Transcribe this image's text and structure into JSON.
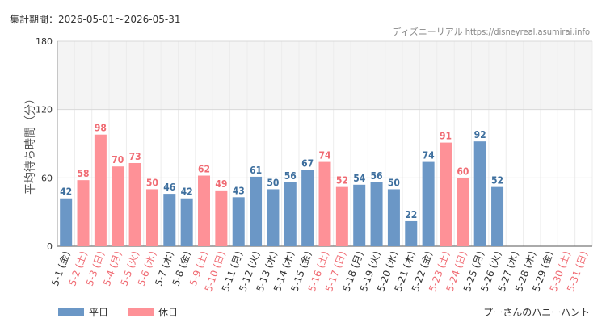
{
  "period_label": "集計期間：2026-05-01～2026-05-31",
  "source": "ディズニーリアル https://disneyreal.asumirai.info",
  "attraction": "プーさんのハニーハント",
  "colors": {
    "weekday": "#6b97c6",
    "holiday": "#fe9197",
    "holiday_text": "#f06b73",
    "weekday_text": "#3e6f9e",
    "axis_text": "#333333"
  },
  "chart_data": {
    "type": "bar",
    "ylabel": "平均待ち時間（分）",
    "ylim": [
      0,
      180
    ],
    "yticks": [
      0,
      60,
      120,
      180
    ],
    "shaded_band": [
      120,
      180
    ],
    "legend": {
      "position": "bottom-left",
      "entries": [
        {
          "key": "weekday",
          "label": "平日"
        },
        {
          "key": "holiday",
          "label": "休日"
        }
      ]
    },
    "categories": [
      "5-1 (金)",
      "5-2 (土)",
      "5-3 (日)",
      "5-4 (月)",
      "5-5 (火)",
      "5-6 (水)",
      "5-7 (木)",
      "5-8 (金)",
      "5-9 (土)",
      "5-10 (日)",
      "5-11 (月)",
      "5-12 (火)",
      "5-13 (水)",
      "5-14 (木)",
      "5-15 (金)",
      "5-16 (土)",
      "5-17 (日)",
      "5-18 (月)",
      "5-19 (火)",
      "5-20 (水)",
      "5-21 (木)",
      "5-22 (金)",
      "5-23 (土)",
      "5-24 (日)",
      "5-25 (月)",
      "5-26 (火)",
      "5-27 (水)",
      "5-28 (木)",
      "5-29 (金)",
      "5-30 (土)",
      "5-31 (日)"
    ],
    "values": [
      42,
      58,
      98,
      70,
      73,
      50,
      46,
      42,
      62,
      49,
      43,
      61,
      50,
      56,
      67,
      74,
      52,
      54,
      56,
      50,
      22,
      74,
      91,
      60,
      92,
      52,
      null,
      null,
      null,
      null,
      null
    ],
    "day_type": [
      "weekday",
      "holiday",
      "holiday",
      "holiday",
      "holiday",
      "holiday",
      "weekday",
      "weekday",
      "holiday",
      "holiday",
      "weekday",
      "weekday",
      "weekday",
      "weekday",
      "weekday",
      "holiday",
      "holiday",
      "weekday",
      "weekday",
      "weekday",
      "weekday",
      "weekday",
      "holiday",
      "holiday",
      "weekday",
      "weekday",
      "weekday",
      "weekday",
      "weekday",
      "holiday",
      "holiday"
    ]
  }
}
